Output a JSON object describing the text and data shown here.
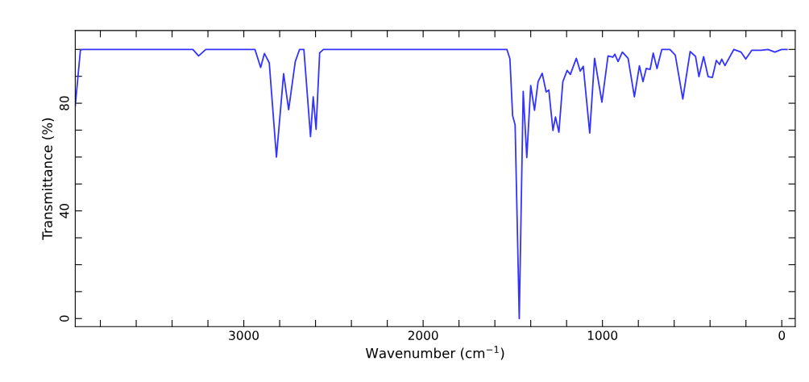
{
  "chart_data": {
    "type": "line",
    "xlabel": "Wavenumber (cm$^{−1}$)",
    "ylabel": "Transmittance (%)",
    "xlim": [
      3940,
      -75
    ],
    "ylim": [
      -3,
      107
    ],
    "xticks": [
      {
        "value": 3800,
        "label": null
      },
      {
        "value": 3600,
        "label": null
      },
      {
        "value": 3400,
        "label": null
      },
      {
        "value": 3200,
        "label": null
      },
      3000,
      {
        "value": 2800,
        "label": null
      },
      {
        "value": 2600,
        "label": null
      },
      {
        "value": 2400,
        "label": null
      },
      {
        "value": 2200,
        "label": null
      },
      2000,
      {
        "value": 1800,
        "label": null
      },
      {
        "value": 1600,
        "label": null
      },
      {
        "value": 1400,
        "label": null
      },
      {
        "value": 1200,
        "label": null
      },
      1000,
      {
        "value": 800,
        "label": null
      },
      {
        "value": 600,
        "label": null
      },
      {
        "value": 400,
        "label": null
      },
      {
        "value": 200,
        "label": null
      },
      0
    ],
    "yticks": [
      0,
      {
        "value": 10,
        "label": null
      },
      {
        "value": 20,
        "label": null
      },
      {
        "value": 30,
        "label": null
      },
      40,
      {
        "value": 50,
        "label": null
      },
      {
        "value": 60,
        "label": null
      },
      {
        "value": 70,
        "label": null
      },
      80,
      {
        "value": 90,
        "label": null
      },
      {
        "value": 100,
        "label": null
      }
    ],
    "grid": false,
    "marker": "none",
    "line_style": "solid",
    "series": [
      {
        "color": "#3333ff",
        "x": [
          3940,
          3911,
          3896,
          3284,
          3252,
          3212,
          2938,
          2906,
          2885,
          2858,
          2818,
          2778,
          2750,
          2713,
          2689,
          2665,
          2628,
          2613,
          2597,
          2577,
          2556,
          1533,
          1516,
          1501,
          1487,
          1464,
          1442,
          1422,
          1400,
          1379,
          1359,
          1336,
          1314,
          1299,
          1276,
          1262,
          1243,
          1221,
          1197,
          1179,
          1146,
          1124,
          1107,
          1071,
          1044,
          1003,
          969,
          942,
          931,
          913,
          889,
          857,
          822,
          794,
          774,
          756,
          734,
          717,
          696,
          669,
          624,
          594,
          552,
          511,
          481,
          462,
          436,
          411,
          387,
          365,
          347,
          335,
          317,
          267,
          227,
          201,
          167,
          115,
          77,
          39,
          1,
          -29
        ],
        "values": [
          79,
          99.8,
          100,
          100,
          97.6,
          100,
          100,
          93.3,
          98.5,
          95,
          60,
          91,
          77.6,
          95.5,
          100,
          100,
          67.6,
          82.4,
          70.3,
          98.7,
          100,
          100,
          96.5,
          75.4,
          71.9,
          0,
          84.4,
          59.8,
          86.6,
          77.4,
          88,
          91.1,
          84.2,
          84.9,
          69.9,
          74.9,
          69.2,
          88,
          92.2,
          90.7,
          96.7,
          91.9,
          93.7,
          68.9,
          96.7,
          80.4,
          97.6,
          97.1,
          98.2,
          95.5,
          99,
          96.7,
          82.4,
          93.9,
          88,
          92.9,
          92.6,
          98.6,
          92.9,
          100,
          100,
          97.9,
          81.6,
          99.2,
          97.4,
          89.9,
          97.3,
          89.9,
          89.6,
          95.9,
          94.4,
          96.4,
          94,
          100,
          99,
          96.4,
          99.7,
          99.7,
          100,
          99,
          100,
          100
        ]
      }
    ]
  }
}
